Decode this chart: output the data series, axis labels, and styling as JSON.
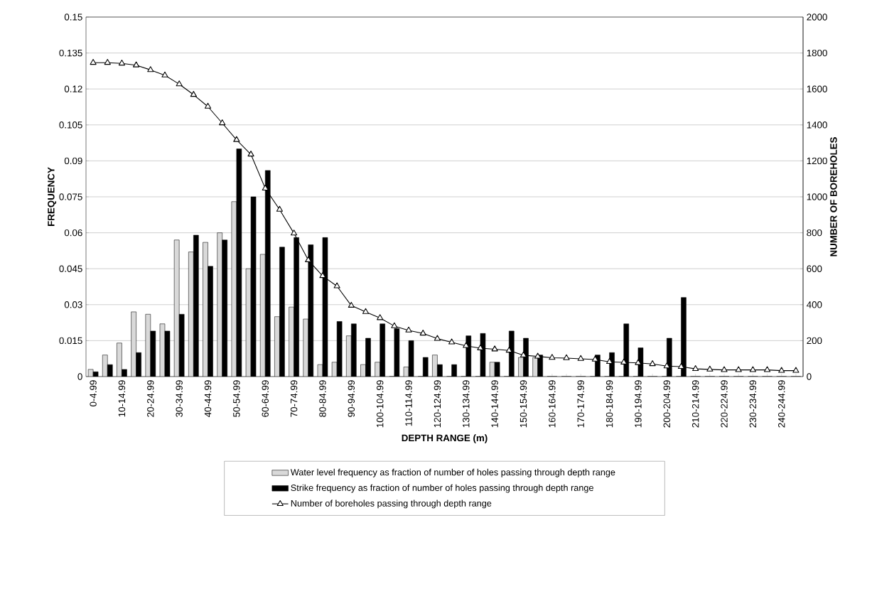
{
  "chart_data": {
    "type": "bar",
    "xlabel": "DEPTH RANGE (m)",
    "ylabel": "FREQUENCY",
    "y2label": "NUMBER OF BOREHOLES",
    "categories": [
      "0-4.99",
      null,
      "10-14.99",
      null,
      "20-24.99",
      null,
      "30-34.99",
      null,
      "40-44.99",
      null,
      "50-54.99",
      null,
      "60-64.99",
      null,
      "70-74.99",
      null,
      "80-84.99",
      null,
      "90-94.99",
      null,
      "100-104.99",
      null,
      "110-114.99",
      null,
      "120-124.99",
      null,
      "130-134.99",
      null,
      "140-144.99",
      null,
      "150-154.99",
      null,
      "160-164.99",
      null,
      "170-174.99",
      null,
      "180-184.99",
      null,
      "190-194.99",
      null,
      "200-204.99",
      null,
      "210-214.99",
      null,
      "220-224.99",
      null,
      "230-234.99",
      null,
      "240-244.99",
      null
    ],
    "series": [
      {
        "name": "Water level frequency as fraction of number of holes passing through depth range",
        "color": "#d9d9d9",
        "values": [
          0.003,
          0.009,
          0.014,
          0.027,
          0.026,
          0.022,
          0.057,
          0.052,
          0.056,
          0.06,
          0.073,
          0.045,
          0.051,
          0.025,
          0.029,
          0.024,
          0.005,
          0.006,
          0.017,
          0.005,
          0.006,
          0,
          0.004,
          0,
          0.009,
          0,
          0,
          0,
          0.006,
          0,
          0.008,
          0.008,
          0,
          0,
          0,
          0,
          0,
          0,
          0,
          0,
          0,
          0,
          0,
          0,
          0,
          0,
          0,
          0,
          0,
          0
        ]
      },
      {
        "name": "Strike frequency as fraction of number of holes passing through depth range",
        "color": "#000000",
        "values": [
          0.002,
          0.005,
          0.003,
          0.01,
          0.019,
          0.019,
          0.026,
          0.059,
          0.046,
          0.057,
          0.095,
          0.075,
          0.086,
          0.054,
          0.058,
          0.055,
          0.058,
          0.023,
          0.022,
          0.016,
          0.022,
          0.02,
          0.015,
          0.008,
          0.005,
          0.005,
          0.017,
          0.018,
          0.006,
          0.019,
          0.016,
          0.009,
          0,
          0,
          0,
          0.009,
          0.01,
          0.022,
          0.012,
          0,
          0.016,
          0.033,
          0,
          0,
          0,
          0,
          0,
          0,
          0,
          0
        ]
      },
      {
        "name": "Number of boreholes passing through depth range",
        "type": "line",
        "axis": "y2",
        "marker": "triangle",
        "color": "#000000",
        "values": [
          1746,
          1746,
          1742,
          1732,
          1706,
          1676,
          1627,
          1568,
          1502,
          1410,
          1317,
          1236,
          1047,
          929,
          797,
          648,
          560,
          503,
          395,
          360,
          326,
          281,
          257,
          240,
          211,
          191,
          171,
          158,
          152,
          145,
          119,
          112,
          105,
          103,
          99,
          95,
          82,
          79,
          76,
          70,
          58,
          55,
          43,
          40,
          37,
          37,
          37,
          37,
          33,
          33
        ]
      }
    ],
    "ylim": [
      0,
      0.15
    ],
    "yticks": [
      0,
      0.015,
      0.03,
      0.045,
      0.06,
      0.075,
      0.09,
      0.105,
      0.12,
      0.135,
      0.15
    ],
    "y2lim": [
      0,
      2000
    ],
    "y2ticks": [
      0,
      200,
      400,
      600,
      800,
      1000,
      1200,
      1400,
      1600,
      1800,
      2000
    ],
    "grid": "y",
    "legend": "bottom"
  }
}
